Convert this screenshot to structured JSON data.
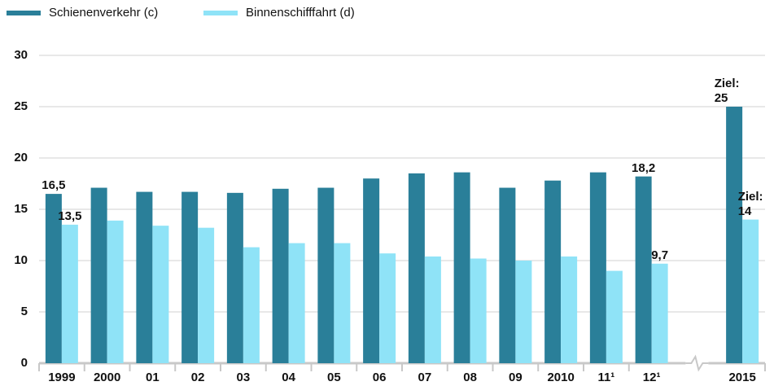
{
  "chart_data": {
    "type": "bar",
    "categories": [
      "1999",
      "2000",
      "01",
      "02",
      "03",
      "04",
      "05",
      "06",
      "07",
      "08",
      "09",
      "2010",
      "11¹",
      "12¹",
      null,
      "2015"
    ],
    "series": [
      {
        "name": "Schienenverkehr (c)",
        "color": "#2a7f99",
        "values": [
          16.5,
          17.1,
          16.7,
          16.7,
          16.6,
          17.0,
          17.1,
          18.0,
          18.5,
          18.6,
          17.1,
          17.8,
          18.6,
          18.2,
          null,
          25
        ],
        "value_labels": [
          "16,5",
          null,
          null,
          null,
          null,
          null,
          null,
          null,
          null,
          null,
          null,
          null,
          null,
          "18,2",
          null,
          "Ziel: 25"
        ]
      },
      {
        "name": "Binnenschifffahrt (d)",
        "color": "#8fe3f7",
        "values": [
          13.5,
          13.9,
          13.4,
          13.2,
          11.3,
          11.7,
          11.7,
          10.7,
          10.4,
          10.2,
          10.0,
          10.4,
          9.0,
          9.7,
          null,
          14
        ],
        "value_labels": [
          "13,5",
          null,
          null,
          null,
          null,
          null,
          null,
          null,
          null,
          null,
          null,
          null,
          null,
          "9,7",
          null,
          "Ziel:\n14"
        ]
      }
    ],
    "ylim": [
      0,
      30
    ],
    "yticks": [
      0,
      5,
      10,
      15,
      20,
      25,
      30
    ],
    "grid": true,
    "legend": "top-left"
  }
}
